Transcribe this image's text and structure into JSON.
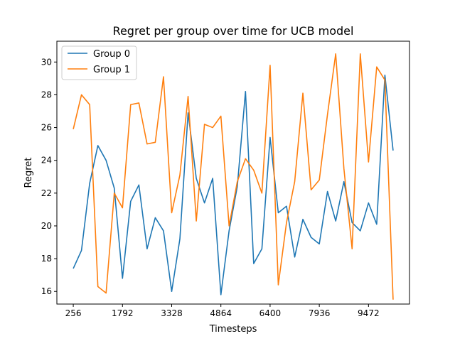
{
  "chart_data": {
    "type": "line",
    "title": "Regret per group over time for UCB model",
    "xlabel": "Timesteps",
    "ylabel": "Regret",
    "x": [
      256,
      512,
      768,
      1024,
      1280,
      1536,
      1792,
      2048,
      2304,
      2560,
      2816,
      3072,
      3328,
      3584,
      3840,
      4096,
      4352,
      4608,
      4864,
      5120,
      5376,
      5632,
      5888,
      6144,
      6400,
      6656,
      6912,
      7168,
      7424,
      7680,
      7936,
      8192,
      8448,
      8704,
      8960,
      9216,
      9472,
      9728,
      9984,
      10240
    ],
    "xticks": [
      "256",
      "1792",
      "3328",
      "4864",
      "6400",
      "7936",
      "9472"
    ],
    "yticks": [
      "16",
      "18",
      "20",
      "22",
      "24",
      "26",
      "28",
      "30"
    ],
    "xlim": [
      -256,
      10752
    ],
    "ylim": [
      15.23,
      31.27
    ],
    "grid": false,
    "legend_position": "top-left",
    "series": [
      {
        "name": "Group 0",
        "color": "#1f77b4",
        "values": [
          17.4,
          18.5,
          22.6,
          24.9,
          24.0,
          22.3,
          16.8,
          21.5,
          22.5,
          18.6,
          20.5,
          19.7,
          16.0,
          19.2,
          26.9,
          22.9,
          21.4,
          22.9,
          15.8,
          19.7,
          22.4,
          28.2,
          17.7,
          18.6,
          25.4,
          20.8,
          21.2,
          18.1,
          20.4,
          19.3,
          18.9,
          22.1,
          20.3,
          22.7,
          20.2,
          19.7,
          21.4,
          20.1,
          29.2,
          24.6
        ]
      },
      {
        "name": "Group 1",
        "color": "#ff7f0e",
        "values": [
          25.9,
          28.0,
          27.4,
          16.3,
          15.9,
          22.0,
          21.1,
          27.4,
          27.5,
          25.0,
          25.1,
          29.1,
          20.8,
          23.1,
          27.9,
          20.3,
          26.2,
          26.0,
          26.7,
          20.0,
          22.7,
          24.1,
          23.4,
          22.0,
          29.8,
          16.4,
          20.2,
          22.7,
          28.1,
          22.2,
          22.8,
          26.8,
          30.5,
          23.5,
          18.6,
          30.5,
          23.9,
          29.7,
          28.9,
          15.5
        ]
      }
    ]
  }
}
